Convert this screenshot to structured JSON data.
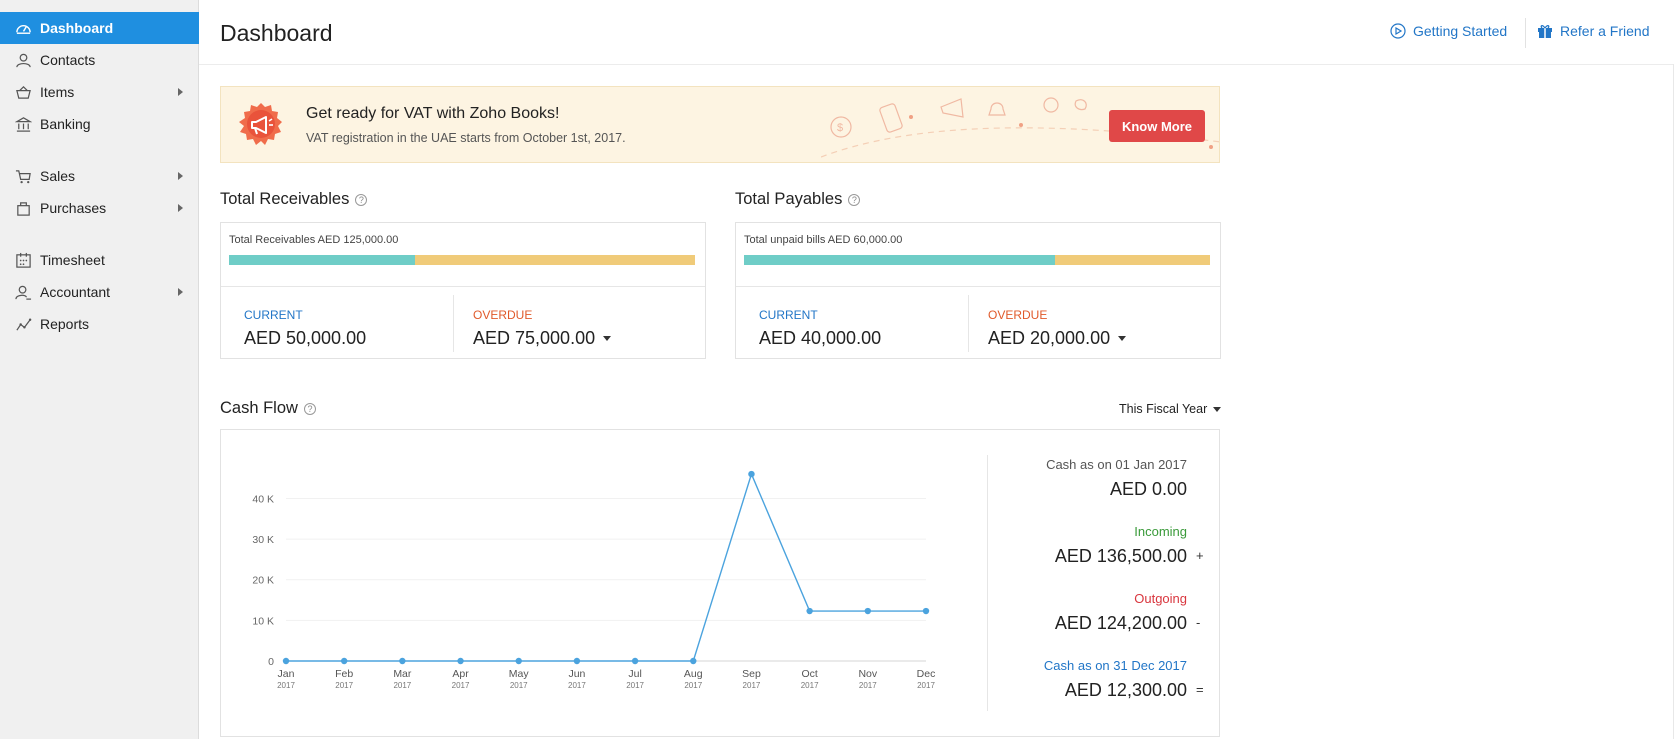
{
  "sidebar": {
    "items": [
      {
        "label": "Dashboard",
        "icon": "dashboard-icon",
        "active": true
      },
      {
        "label": "Contacts",
        "icon": "contacts-icon"
      },
      {
        "label": "Items",
        "icon": "items-icon",
        "has_submenu": true
      },
      {
        "label": "Banking",
        "icon": "bank-icon"
      },
      {
        "label": "Sales",
        "icon": "cart-icon",
        "has_submenu": true
      },
      {
        "label": "Purchases",
        "icon": "bag-icon",
        "has_submenu": true
      },
      {
        "label": "Timesheet",
        "icon": "calendar-icon"
      },
      {
        "label": "Accountant",
        "icon": "accountant-icon",
        "has_submenu": true
      },
      {
        "label": "Reports",
        "icon": "reports-icon"
      }
    ]
  },
  "header": {
    "title": "Dashboard",
    "getting_started": "Getting Started",
    "refer_friend": "Refer a Friend"
  },
  "banner": {
    "title": "Get ready for VAT with Zoho Books!",
    "subtitle": "VAT registration in the UAE starts from October 1st, 2017.",
    "button": "Know More"
  },
  "receivables": {
    "title": "Total Receivables",
    "summary": "Total Receivables AED 125,000.00",
    "current_fraction": 0.4,
    "current_label": "CURRENT",
    "current_value": "AED 50,000.00",
    "overdue_label": "OVERDUE",
    "overdue_value": "AED 75,000.00"
  },
  "payables": {
    "title": "Total Payables",
    "summary": "Total unpaid bills AED 60,000.00",
    "current_fraction": 0.667,
    "current_label": "CURRENT",
    "current_value": "AED 40,000.00",
    "overdue_label": "OVERDUE",
    "overdue_value": "AED 20,000.00"
  },
  "cashflow": {
    "title": "Cash Flow",
    "period": "This Fiscal Year",
    "opening_label": "Cash as on 01 Jan 2017",
    "opening_value": "AED 0.00",
    "incoming_label": "Incoming",
    "incoming_value": "AED 136,500.00",
    "incoming_op": "+",
    "outgoing_label": "Outgoing",
    "outgoing_value": "AED 124,200.00",
    "outgoing_op": "-",
    "closing_label": "Cash as on 31 Dec 2017",
    "closing_value": "AED 12,300.00",
    "closing_op": "="
  },
  "colors": {
    "accent": "#1f8fe0",
    "link": "#2276c7",
    "current_bar": "#6fcdc7",
    "overdue_bar": "#f0cb79",
    "incoming": "#3a9a3a",
    "outgoing": "#d9363e",
    "line": "#4ba3de",
    "button": "#e04848"
  },
  "chart_data": {
    "type": "line",
    "categories": [
      "Jan",
      "Feb",
      "Mar",
      "Apr",
      "May",
      "Jun",
      "Jul",
      "Aug",
      "Sep",
      "Oct",
      "Nov",
      "Dec"
    ],
    "year_label": "2017",
    "values": [
      0,
      0,
      0,
      0,
      0,
      0,
      0,
      0,
      46000,
      12300,
      12300,
      12300
    ],
    "yticks": [
      0,
      10000,
      20000,
      30000,
      40000
    ],
    "ytick_labels": [
      "0",
      "10 K",
      "20 K",
      "30 K",
      "40 K"
    ],
    "ylim": [
      0,
      47000
    ],
    "grid": true,
    "legend": "none"
  }
}
